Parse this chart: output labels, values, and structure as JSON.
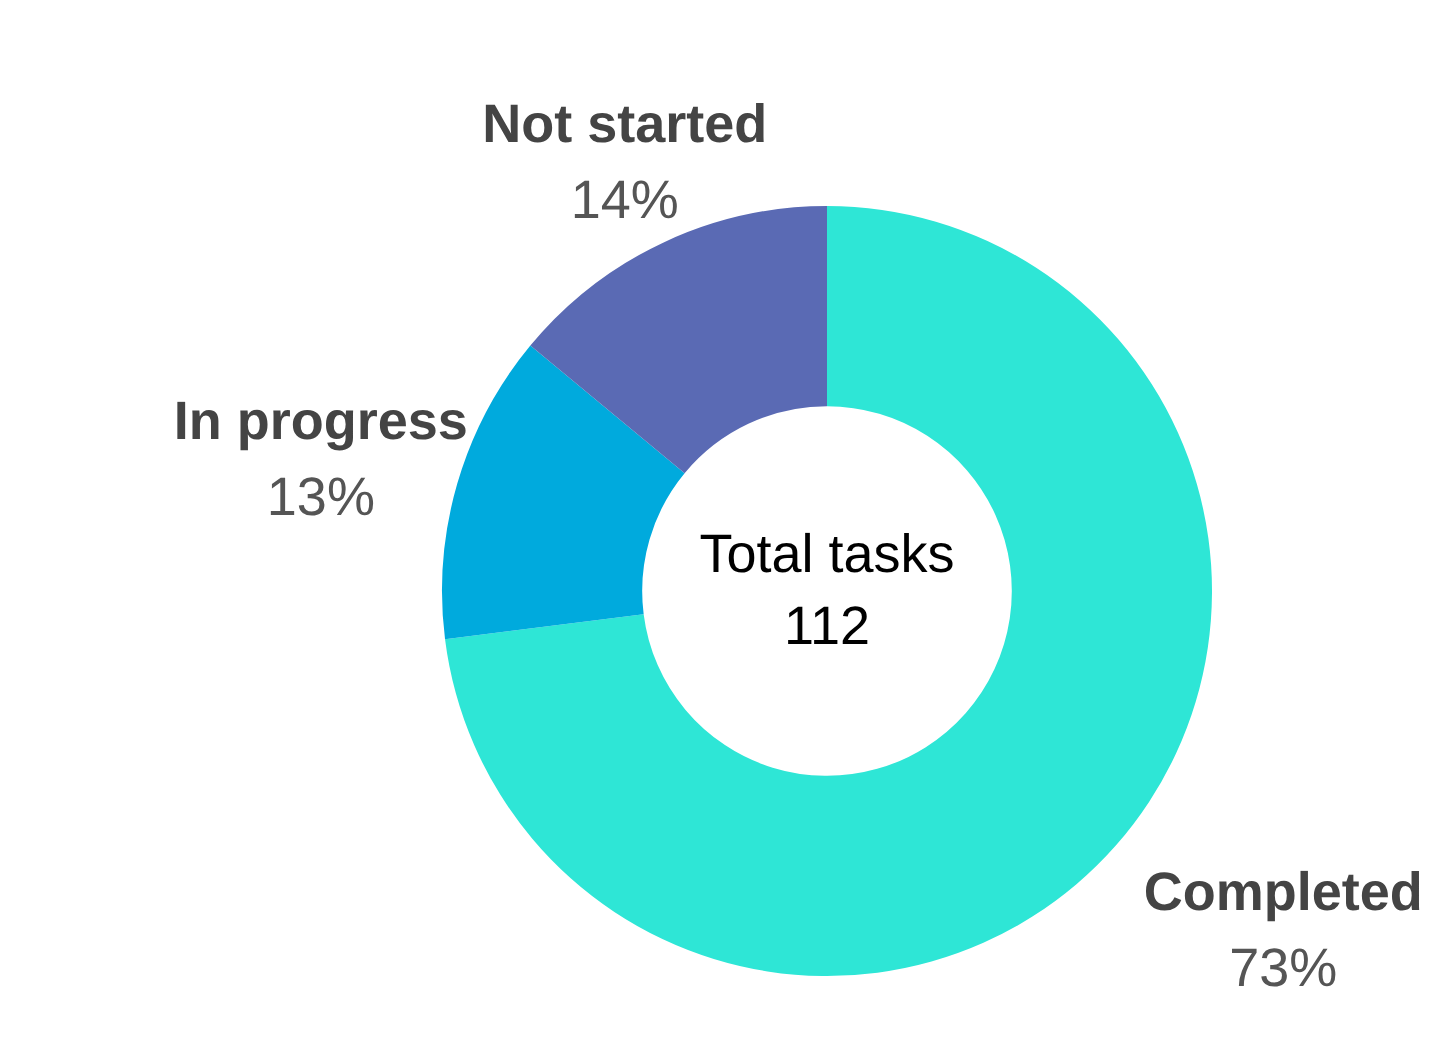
{
  "chart_data": {
    "type": "donut",
    "categories": [
      "Completed",
      "In progress",
      "Not started"
    ],
    "values": [
      73,
      13,
      14
    ],
    "value_labels": [
      "73%",
      "13%",
      "14%"
    ],
    "colors": [
      "#2ee6d6",
      "#00aadd",
      "#5a6ab4"
    ],
    "annotations": [
      "Total tasks",
      "112"
    ],
    "legend": false
  }
}
